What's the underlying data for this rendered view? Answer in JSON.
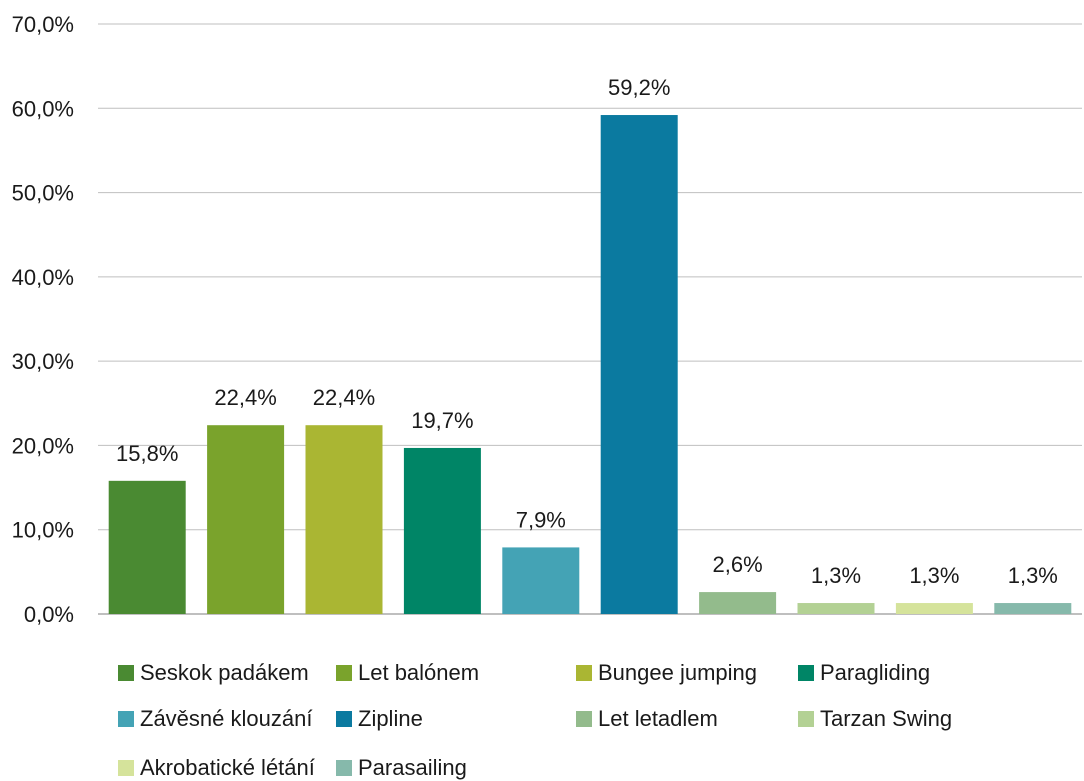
{
  "chart_data": {
    "type": "bar",
    "title": "",
    "xlabel": "",
    "ylabel": "",
    "ylim": [
      0,
      70
    ],
    "yticks": [
      "0,0%",
      "10,0%",
      "20,0%",
      "30,0%",
      "40,0%",
      "50,0%",
      "60,0%",
      "70,0%"
    ],
    "grid": true,
    "legend_position": "bottom",
    "categories": [
      "Seskok padákem",
      "Let balónem",
      "Bungee jumping",
      "Paragliding",
      "Závěsné klouzání",
      "Zipline",
      "Let letadlem",
      "Tarzan Swing",
      "Akrobatické létání",
      "Parasailing"
    ],
    "values": [
      15.8,
      22.4,
      22.4,
      19.7,
      7.9,
      59.2,
      2.6,
      1.3,
      1.3,
      1.3
    ],
    "value_labels": [
      "15,8%",
      "22,4%",
      "22,4%",
      "19,7%",
      "7,9%",
      "59,2%",
      "2,6%",
      "1,3%",
      "1,3%",
      "1,3%"
    ],
    "colors": [
      "#4a8a32",
      "#7aa32c",
      "#aab633",
      "#008566",
      "#44a3b5",
      "#0b7aa0",
      "#93bb8c",
      "#b3d194",
      "#d5e39b",
      "#86b9ab"
    ]
  }
}
